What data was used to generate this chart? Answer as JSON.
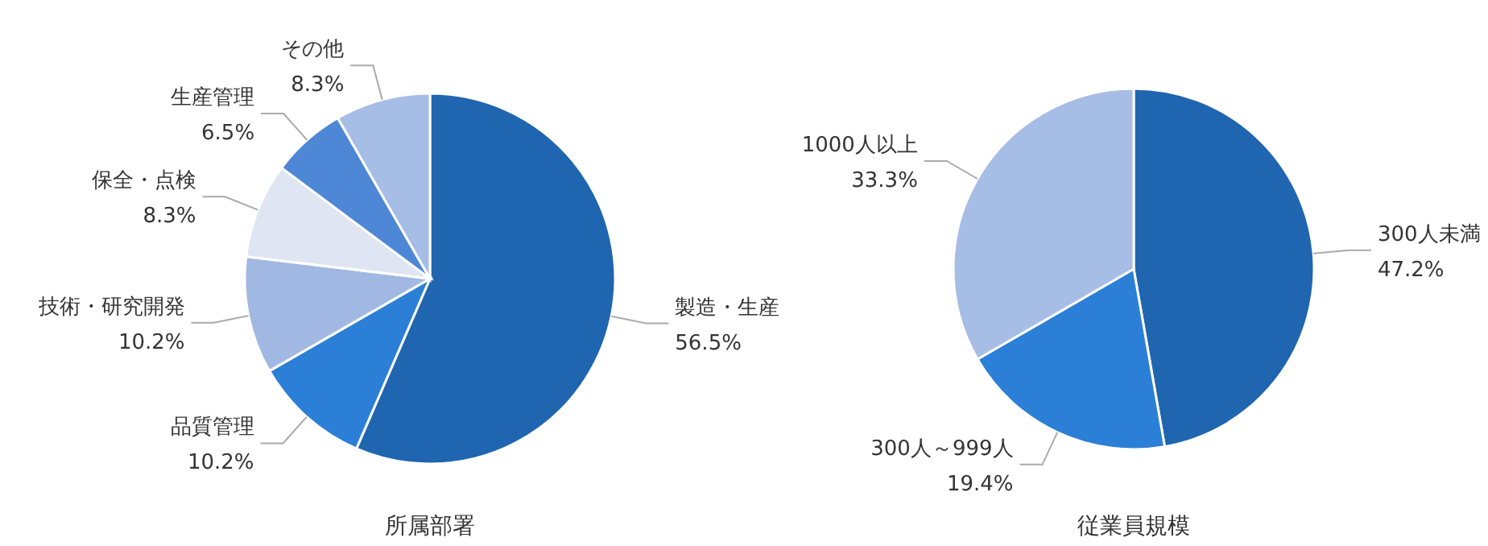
{
  "chart_data": [
    {
      "type": "pie",
      "title": "所属部署",
      "categories": [
        "製造・生産",
        "品質管理",
        "技術・研究開発",
        "保全・点検",
        "生産管理",
        "その他"
      ],
      "values": [
        56.5,
        10.2,
        10.2,
        8.3,
        6.5,
        8.3
      ],
      "value_labels": [
        "56.5%",
        "10.2%",
        "10.2%",
        "8.3%",
        "6.5%",
        "8.3%"
      ],
      "colors": [
        "#1f65b0",
        "#2b7fd6",
        "#a0b8e2",
        "#dfe5f2",
        "#4d87d6",
        "#a6bde6"
      ]
    },
    {
      "type": "pie",
      "title": "従業員規模",
      "categories": [
        "300人未満",
        "300人～999人",
        "1000人以上"
      ],
      "values": [
        47.2,
        19.4,
        33.3
      ],
      "value_labels": [
        "47.2%",
        "19.4%",
        "33.3%"
      ],
      "colors": [
        "#1f65b0",
        "#2b7fd6",
        "#a6bde6"
      ]
    }
  ]
}
